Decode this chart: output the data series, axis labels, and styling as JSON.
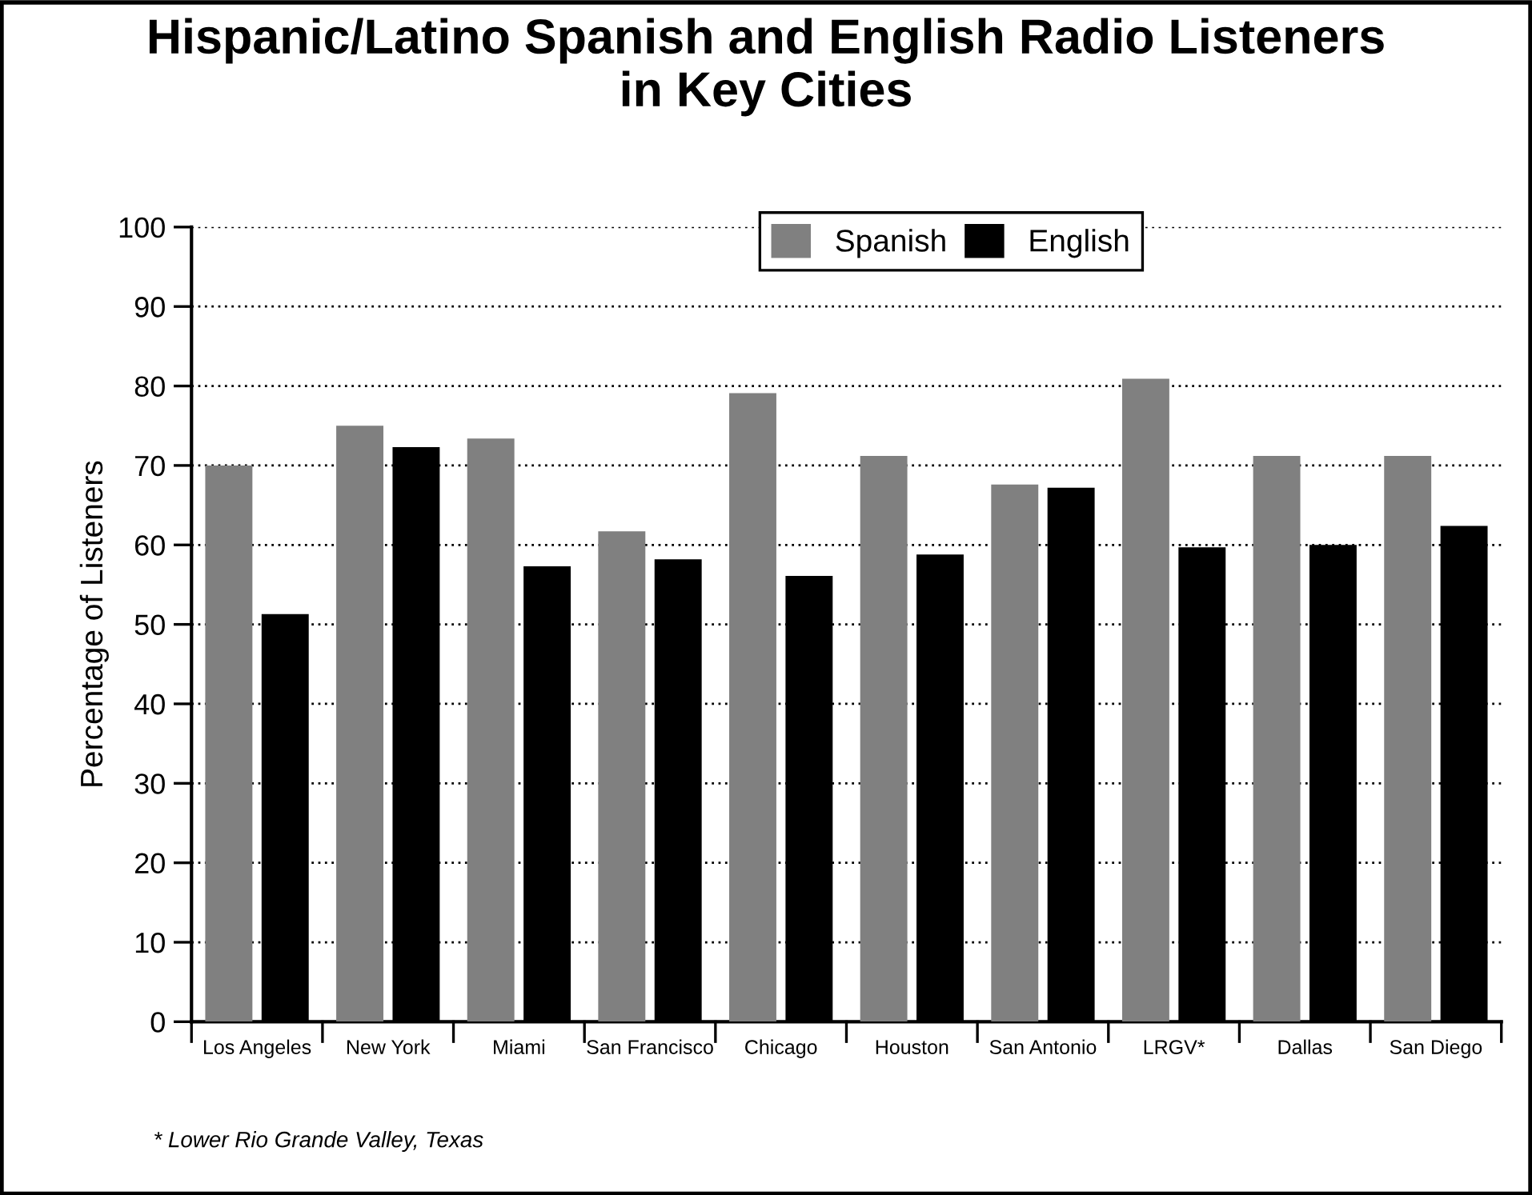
{
  "chart_data": {
    "type": "bar",
    "title": "Hispanic/Latino Spanish and English Radio Listeners\nin Key Cities",
    "ylabel": "Percentage of Listeners",
    "categories": [
      "Los Angeles",
      "New York",
      "Miami",
      "San Francisco",
      "Chicago",
      "Houston",
      "San Antonio",
      "LRGV*",
      "Dallas",
      "San Diego"
    ],
    "series": [
      {
        "name": "Spanish",
        "color": "#808080",
        "values": [
          70,
          75,
          73.4,
          61.7,
          79.1,
          71.2,
          67.6,
          80.9,
          71.2,
          71.2
        ]
      },
      {
        "name": "English",
        "color": "#000000",
        "values": [
          51.3,
          72.3,
          57.3,
          58.2,
          56.1,
          58.8,
          67.2,
          59.7,
          60,
          62.4
        ]
      }
    ],
    "ylim": [
      0,
      100
    ],
    "yticks": [
      0,
      10,
      20,
      30,
      40,
      50,
      60,
      70,
      80,
      90,
      100
    ],
    "grid": "y",
    "legend": "top",
    "annotations": [
      "* Lower Rio Grande Valley, Texas"
    ]
  }
}
